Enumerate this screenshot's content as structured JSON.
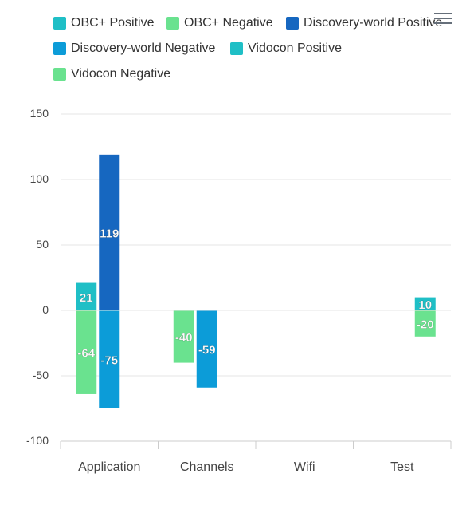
{
  "chart_data": {
    "type": "bar",
    "categories": [
      "Application",
      "Channels",
      "Wifi",
      "Test"
    ],
    "series": [
      {
        "name": "OBC+ Positive",
        "color": "#1fbfc6",
        "values": [
          21,
          0,
          0,
          0
        ],
        "stack": "A"
      },
      {
        "name": "OBC+ Negative",
        "color": "#6ae28f",
        "values": [
          -64,
          -40,
          0,
          0
        ],
        "stack": "A"
      },
      {
        "name": "Discovery-world Positive",
        "color": "#1667c0",
        "values": [
          119,
          0,
          0,
          0
        ],
        "stack": "B"
      },
      {
        "name": "Discovery-world Negative",
        "color": "#0c9cd8",
        "values": [
          -75,
          -59,
          0,
          0
        ],
        "stack": "B"
      },
      {
        "name": "Vidocon Positive",
        "color": "#1fbfc6",
        "values": [
          0,
          0,
          0,
          10
        ],
        "stack": "C"
      },
      {
        "name": "Vidocon Negative",
        "color": "#6ae28f",
        "values": [
          0,
          0,
          0,
          -20
        ],
        "stack": "C"
      }
    ],
    "ylim": [
      -100,
      150
    ],
    "yticks": [
      150,
      100,
      50,
      0,
      -50,
      -100
    ],
    "grid": true,
    "legend": "top-left",
    "data_labels": true
  },
  "icons": {
    "menu": "hamburger-menu-icon"
  }
}
